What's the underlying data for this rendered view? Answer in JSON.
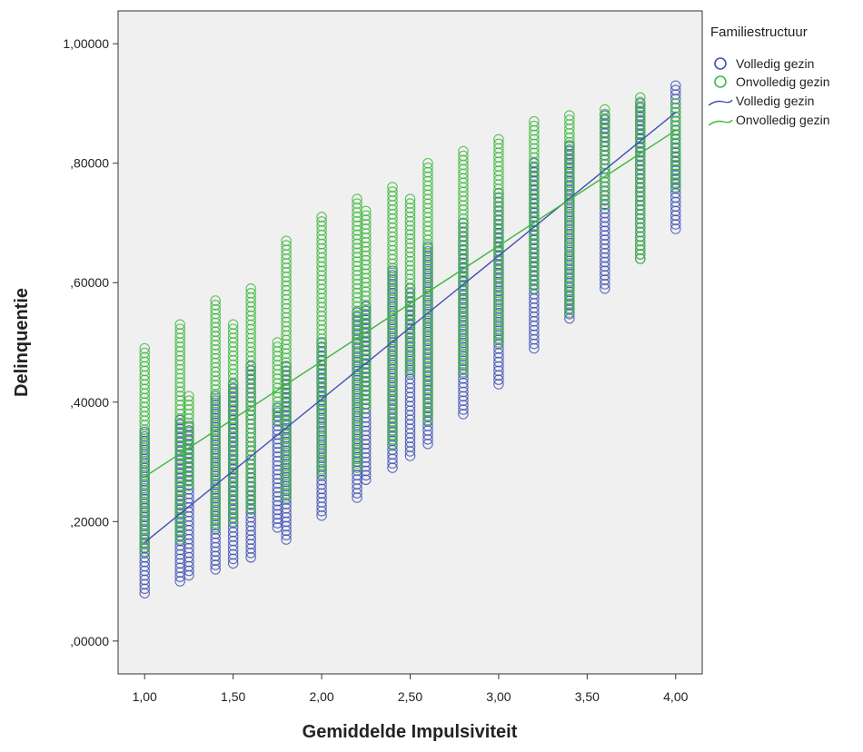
{
  "chart_data": {
    "type": "scatter",
    "title": "",
    "xlabel": "Gemiddelde Impulsiviteit",
    "ylabel": "Delinquentie",
    "xlim": [
      0.85,
      4.15
    ],
    "ylim": [
      -0.055,
      1.055
    ],
    "xticks": [
      1.0,
      1.5,
      2.0,
      2.5,
      3.0,
      3.5,
      4.0
    ],
    "xtick_labels": [
      "1,00",
      "1,50",
      "2,00",
      "2,50",
      "3,00",
      "3,50",
      "4,00"
    ],
    "yticks": [
      0.0,
      0.2,
      0.4,
      0.6,
      0.8,
      1.0
    ],
    "ytick_labels": [
      ",00000",
      ",20000",
      ",40000",
      ",60000",
      ",80000",
      "1,00000"
    ],
    "grid": false,
    "background": "#f0f0f0",
    "legend": {
      "title": "Familiestructuur",
      "placement": "right",
      "entries": [
        {
          "label": "Volledig gezin",
          "kind": "marker",
          "color": "#3f51b5"
        },
        {
          "label": "Onvolledig gezin",
          "kind": "marker",
          "color": "#3db83d"
        },
        {
          "label": "Volledig gezin",
          "kind": "line",
          "color": "#3f51b5"
        },
        {
          "label": "Onvolledig gezin",
          "kind": "line",
          "color": "#3db83d"
        }
      ]
    },
    "series": [
      {
        "name": "Volledig gezin",
        "color": "#3f51b5",
        "marker": "open-circle",
        "columns": [
          {
            "x": 1.0,
            "y_min": 0.08,
            "y_max": 0.35
          },
          {
            "x": 1.2,
            "y_min": 0.1,
            "y_max": 0.37
          },
          {
            "x": 1.25,
            "y_min": 0.11,
            "y_max": 0.36
          },
          {
            "x": 1.4,
            "y_min": 0.12,
            "y_max": 0.41
          },
          {
            "x": 1.5,
            "y_min": 0.13,
            "y_max": 0.43
          },
          {
            "x": 1.6,
            "y_min": 0.14,
            "y_max": 0.46
          },
          {
            "x": 1.75,
            "y_min": 0.19,
            "y_max": 0.39
          },
          {
            "x": 1.8,
            "y_min": 0.17,
            "y_max": 0.46
          },
          {
            "x": 2.0,
            "y_min": 0.21,
            "y_max": 0.5
          },
          {
            "x": 2.2,
            "y_min": 0.24,
            "y_max": 0.55
          },
          {
            "x": 2.25,
            "y_min": 0.27,
            "y_max": 0.56
          },
          {
            "x": 2.4,
            "y_min": 0.29,
            "y_max": 0.62
          },
          {
            "x": 2.5,
            "y_min": 0.31,
            "y_max": 0.59
          },
          {
            "x": 2.6,
            "y_min": 0.33,
            "y_max": 0.66
          },
          {
            "x": 2.8,
            "y_min": 0.38,
            "y_max": 0.7
          },
          {
            "x": 3.0,
            "y_min": 0.43,
            "y_max": 0.75
          },
          {
            "x": 3.2,
            "y_min": 0.49,
            "y_max": 0.8
          },
          {
            "x": 3.4,
            "y_min": 0.54,
            "y_max": 0.83
          },
          {
            "x": 3.6,
            "y_min": 0.59,
            "y_max": 0.88
          },
          {
            "x": 3.8,
            "y_min": 0.64,
            "y_max": 0.9
          },
          {
            "x": 4.0,
            "y_min": 0.69,
            "y_max": 0.93
          }
        ],
        "fit_line": {
          "x": [
            1.0,
            4.0
          ],
          "y": [
            0.165,
            0.885
          ]
        }
      },
      {
        "name": "Onvolledig gezin",
        "color": "#3db83d",
        "marker": "open-circle",
        "columns": [
          {
            "x": 1.0,
            "y_min": 0.15,
            "y_max": 0.49
          },
          {
            "x": 1.2,
            "y_min": 0.17,
            "y_max": 0.53
          },
          {
            "x": 1.25,
            "y_min": 0.26,
            "y_max": 0.41
          },
          {
            "x": 1.4,
            "y_min": 0.19,
            "y_max": 0.57
          },
          {
            "x": 1.5,
            "y_min": 0.2,
            "y_max": 0.53
          },
          {
            "x": 1.6,
            "y_min": 0.22,
            "y_max": 0.59
          },
          {
            "x": 1.75,
            "y_min": 0.37,
            "y_max": 0.5
          },
          {
            "x": 1.8,
            "y_min": 0.24,
            "y_max": 0.67
          },
          {
            "x": 2.0,
            "y_min": 0.28,
            "y_max": 0.71
          },
          {
            "x": 2.2,
            "y_min": 0.29,
            "y_max": 0.74
          },
          {
            "x": 2.25,
            "y_min": 0.39,
            "y_max": 0.72
          },
          {
            "x": 2.4,
            "y_min": 0.33,
            "y_max": 0.76
          },
          {
            "x": 2.5,
            "y_min": 0.45,
            "y_max": 0.74
          },
          {
            "x": 2.6,
            "y_min": 0.37,
            "y_max": 0.8
          },
          {
            "x": 2.8,
            "y_min": 0.45,
            "y_max": 0.82
          },
          {
            "x": 3.0,
            "y_min": 0.5,
            "y_max": 0.84
          },
          {
            "x": 3.2,
            "y_min": 0.59,
            "y_max": 0.87
          },
          {
            "x": 3.4,
            "y_min": 0.55,
            "y_max": 0.88
          },
          {
            "x": 3.6,
            "y_min": 0.73,
            "y_max": 0.89
          },
          {
            "x": 3.8,
            "y_min": 0.64,
            "y_max": 0.91
          },
          {
            "x": 4.0,
            "y_min": 0.76,
            "y_max": 0.9
          }
        ],
        "fit_line": {
          "x": [
            1.0,
            4.0
          ],
          "y": [
            0.275,
            0.855
          ]
        }
      }
    ]
  }
}
